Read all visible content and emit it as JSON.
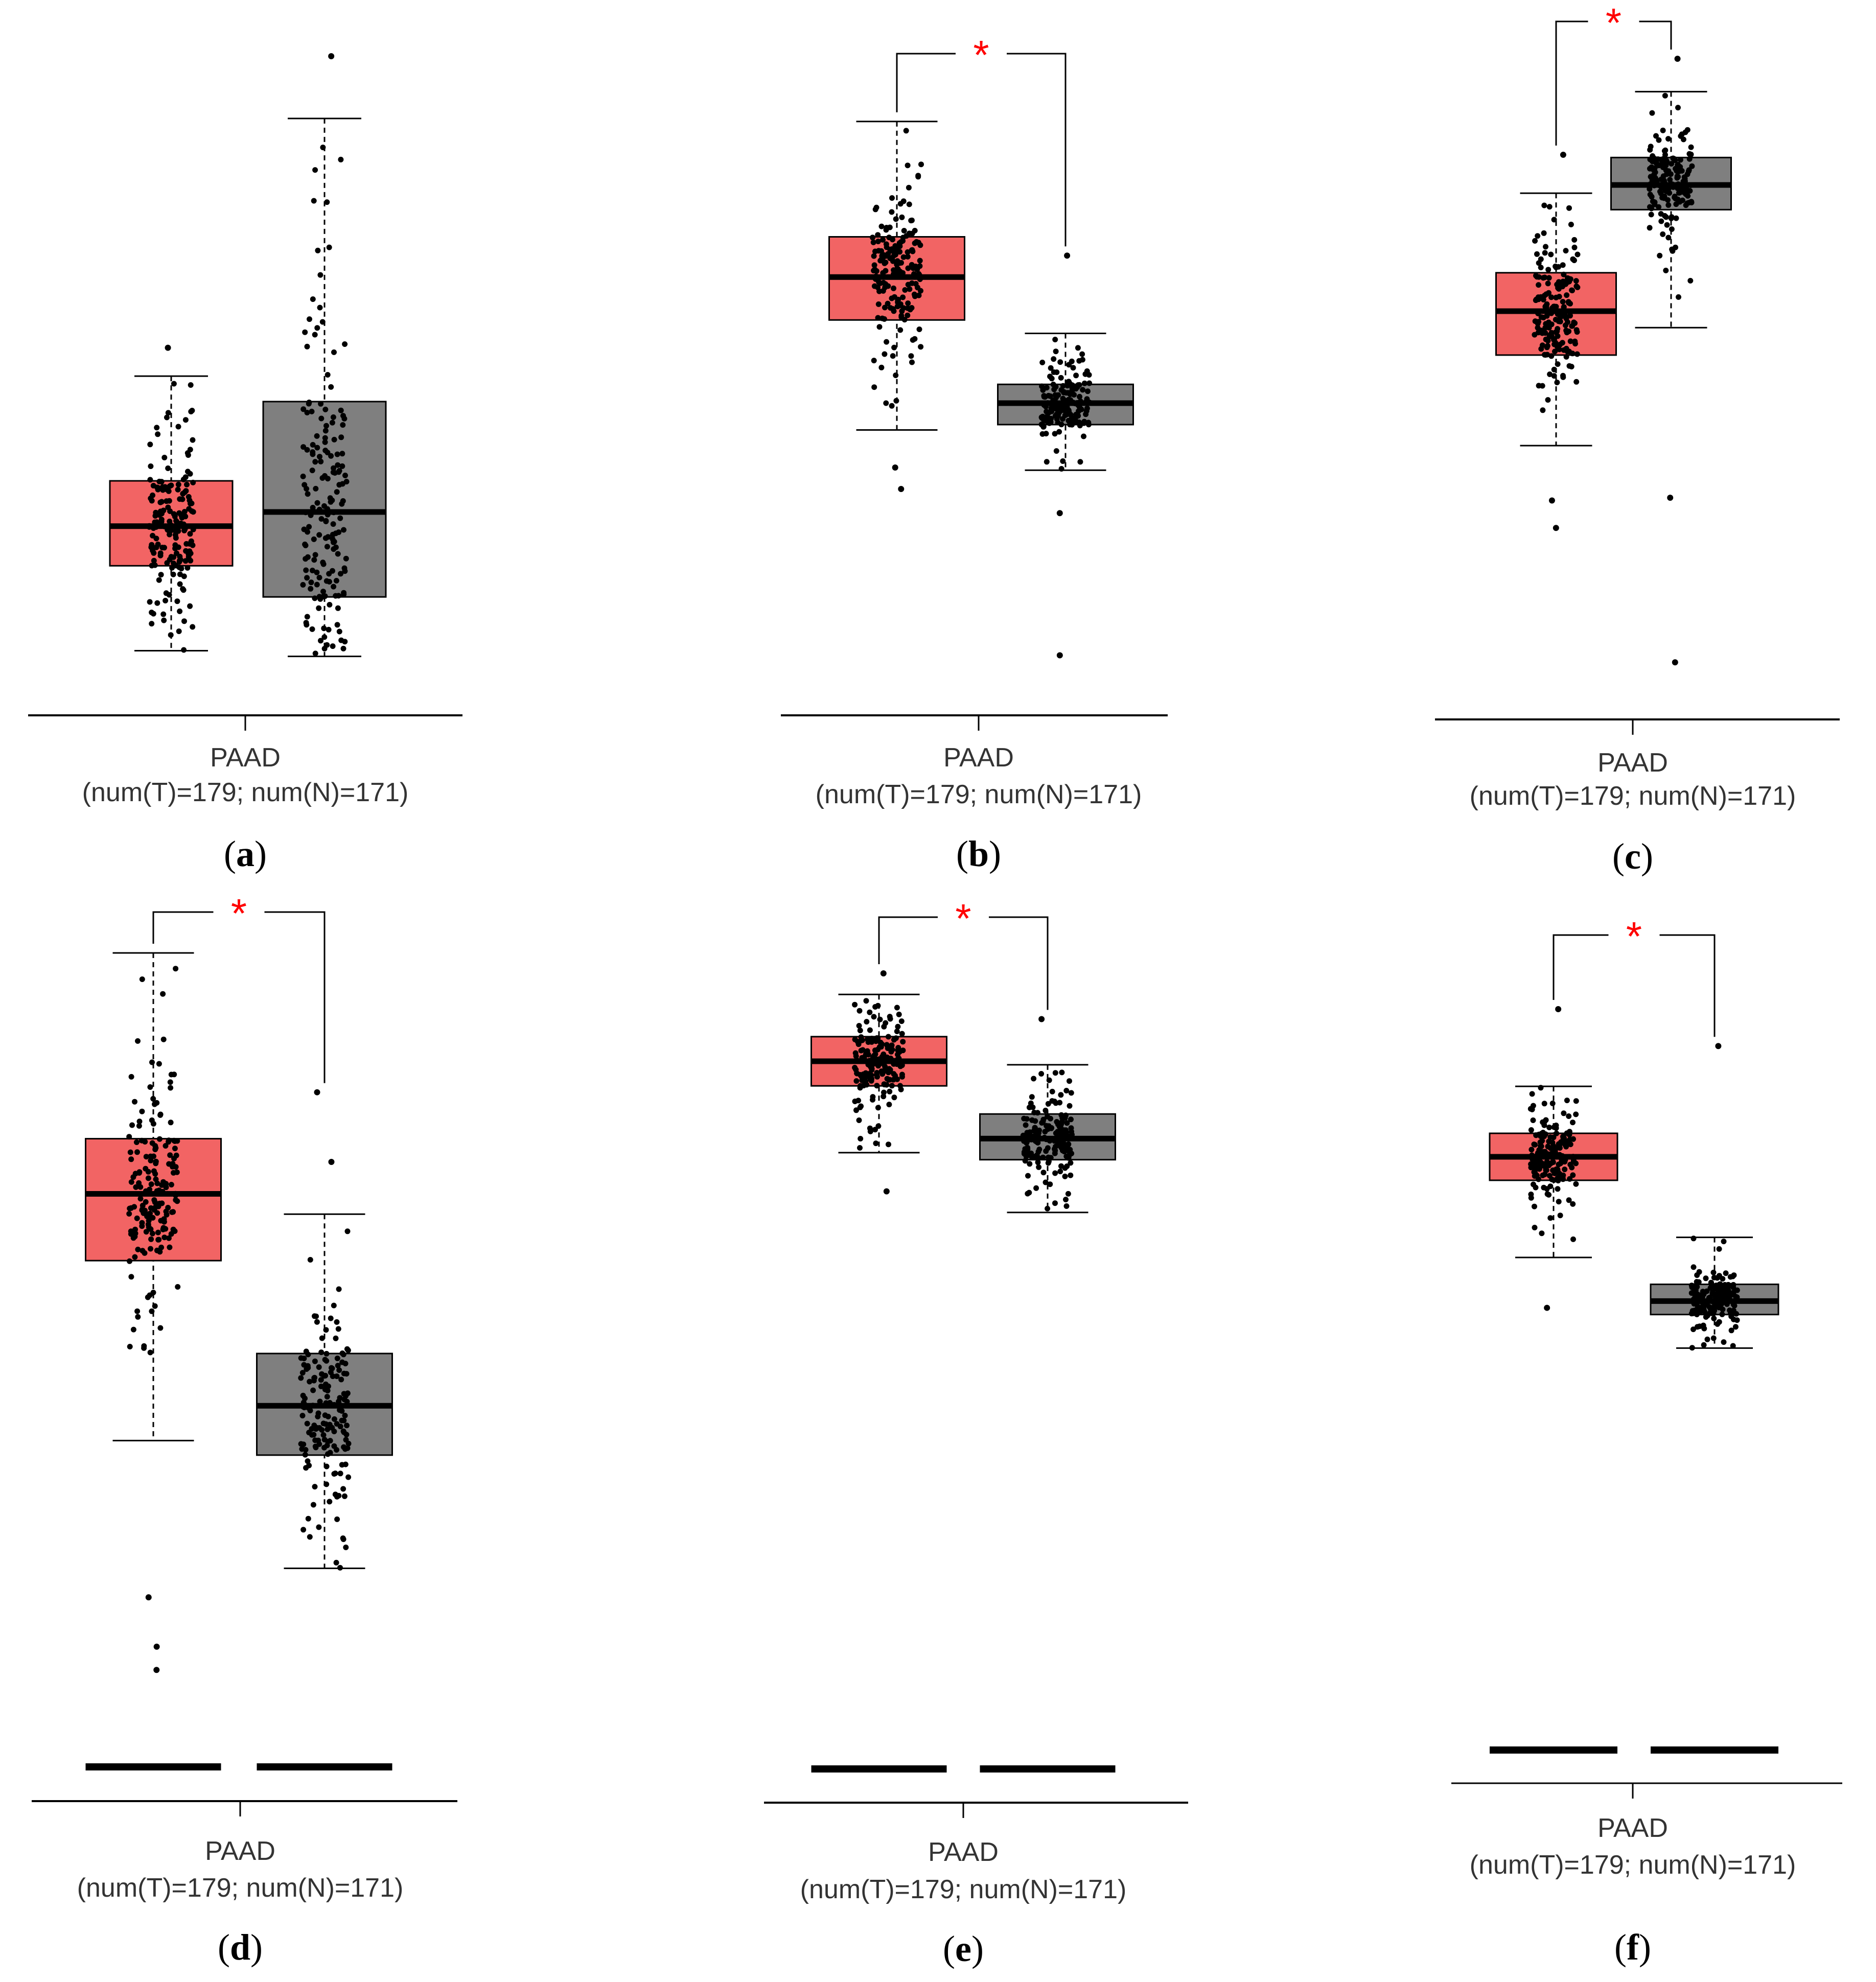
{
  "figure": {
    "box_colors": {
      "tumor": "#f26464",
      "normal": "#7f7f7f"
    },
    "point_color": "#000000",
    "significance_color": "#ff0000"
  },
  "chart_data": [
    {
      "panel": "a",
      "type": "boxplot",
      "xlabel_line1": "PAAD",
      "xlabel_line2": "(num(T)=179; num(N)=171)",
      "significance": "",
      "series": [
        {
          "name": "T",
          "color": "#f26464",
          "min": 1.2,
          "q1": 4.2,
          "median": 5.6,
          "q3": 7.2,
          "max": 10.9,
          "outliers": [
            11.9
          ],
          "n": 179
        },
        {
          "name": "N",
          "color": "#7f7f7f",
          "min": 1.0,
          "q1": 3.1,
          "median": 6.1,
          "q3": 10.0,
          "max": 20.0,
          "outliers": [
            22.2
          ],
          "n": 171
        }
      ]
    },
    {
      "panel": "b",
      "type": "boxplot",
      "xlabel_line1": "PAAD",
      "xlabel_line2": "(num(T)=179; num(N)=171)",
      "significance": "*",
      "series": [
        {
          "name": "T",
          "color": "#f26464",
          "min": 9.4,
          "q1": 13.5,
          "median": 15.1,
          "q3": 16.6,
          "max": 20.9,
          "outliers": [
            8.0,
            7.2
          ],
          "n": 179
        },
        {
          "name": "N",
          "color": "#7f7f7f",
          "min": 7.9,
          "q1": 9.6,
          "median": 10.4,
          "q3": 11.1,
          "max": 13.0,
          "outliers": [
            15.9,
            6.3,
            1.0
          ],
          "n": 171
        }
      ]
    },
    {
      "panel": "c",
      "type": "boxplot",
      "xlabel_line1": "PAAD",
      "xlabel_line2": "(num(T)=179; num(N)=171)",
      "significance": "*",
      "series": [
        {
          "name": "T",
          "color": "#f26464",
          "min": 8.9,
          "q1": 12.2,
          "median": 13.8,
          "q3": 15.2,
          "max": 18.1,
          "outliers": [
            19.5,
            6.9,
            5.9
          ],
          "n": 179
        },
        {
          "name": "N",
          "color": "#7f7f7f",
          "min": 13.2,
          "q1": 17.5,
          "median": 18.4,
          "q3": 19.4,
          "max": 21.8,
          "outliers": [
            23.0,
            7.0,
            1.0
          ],
          "n": 171
        }
      ]
    },
    {
      "panel": "d",
      "type": "boxplot",
      "xlabel_line1": "PAAD",
      "xlabel_line2": "(num(T)=179; num(N)=171)",
      "significance": "*",
      "series": [
        {
          "name": "T",
          "color": "#f26464",
          "min": 11.1,
          "q1": 17.3,
          "median": 19.6,
          "q3": 21.5,
          "max": 27.9,
          "outliers": [
            5.7,
            4.0,
            3.2
          ],
          "n": 179
        },
        {
          "name": "N",
          "color": "#7f7f7f",
          "min": 6.7,
          "q1": 10.6,
          "median": 12.3,
          "q3": 14.1,
          "max": 18.9,
          "outliers": [
            20.7,
            23.1
          ],
          "n": 171
        }
      ]
    },
    {
      "panel": "e",
      "type": "boxplot",
      "xlabel_line1": "PAAD",
      "xlabel_line2": "(num(T)=179; num(N)=171)",
      "significance": "*",
      "series": [
        {
          "name": "T",
          "color": "#f26464",
          "min": 17.5,
          "q1": 19.4,
          "median": 20.1,
          "q3": 20.8,
          "max": 22.0,
          "outliers": [
            22.6,
            16.4
          ],
          "n": 179
        },
        {
          "name": "N",
          "color": "#7f7f7f",
          "min": 15.8,
          "q1": 17.3,
          "median": 17.9,
          "q3": 18.6,
          "max": 20.0,
          "outliers": [
            21.3
          ],
          "n": 171
        }
      ]
    },
    {
      "panel": "f",
      "type": "boxplot",
      "xlabel_line1": "PAAD",
      "xlabel_line2": "(num(T)=179; num(N)=171)",
      "significance": "*",
      "series": [
        {
          "name": "T",
          "color": "#f26464",
          "min": 14.6,
          "q1": 16.9,
          "median": 17.6,
          "q3": 18.3,
          "max": 19.7,
          "outliers": [
            22.0,
            13.1
          ],
          "n": 179
        },
        {
          "name": "N",
          "color": "#7f7f7f",
          "min": 11.9,
          "q1": 12.9,
          "median": 13.3,
          "q3": 13.8,
          "max": 15.2,
          "outliers": [
            20.9
          ],
          "n": 171
        }
      ]
    }
  ]
}
